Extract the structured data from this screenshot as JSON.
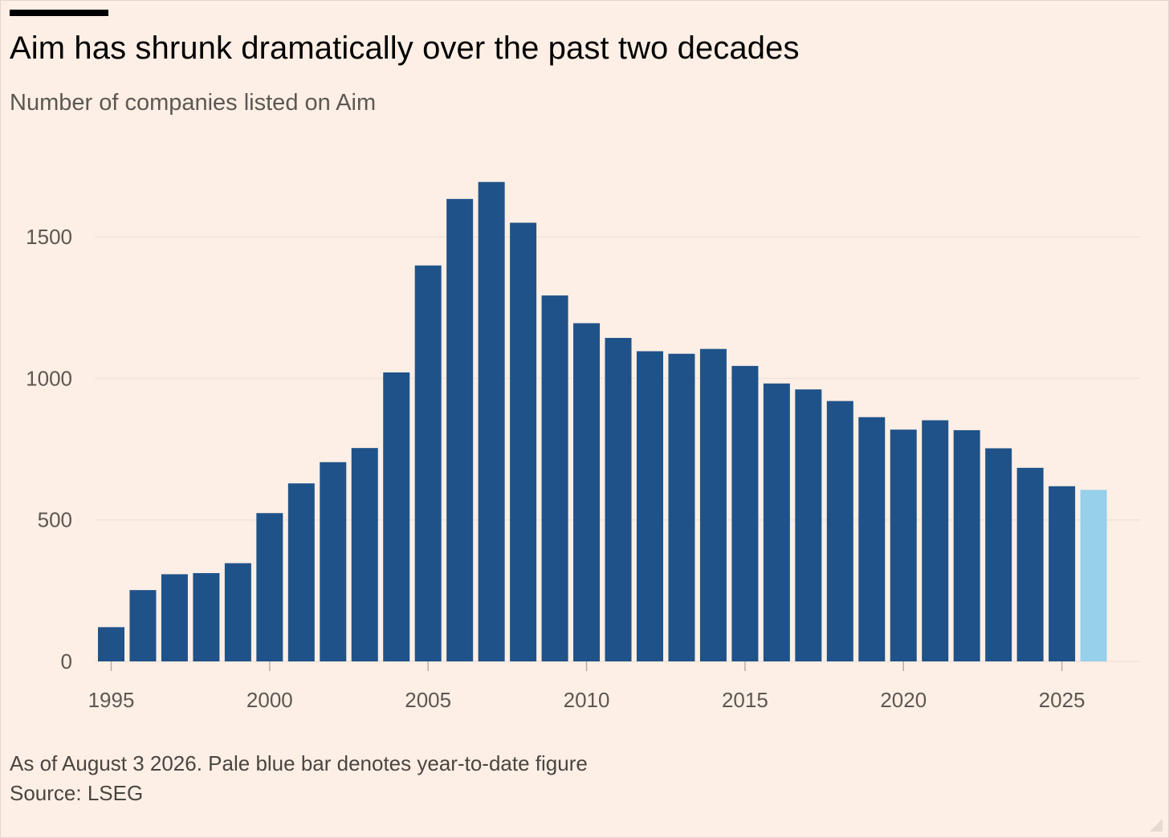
{
  "header": {
    "title": "Aim has shrunk dramatically over the past two decades",
    "subtitle": "Number of companies listed on Aim"
  },
  "footer": {
    "note": "As of August 3 2026. Pale blue bar denotes year-to-date figure",
    "source": "Source: LSEG"
  },
  "colors": {
    "background": "#fdefe5",
    "bar": "#1f5289",
    "bar_ytd": "#96d0ea",
    "gridline": "#efe3da",
    "axis_text": "#5d5752"
  },
  "chart_data": {
    "type": "bar",
    "title": "Aim has shrunk dramatically over the past two decades",
    "subtitle": "Number of companies listed on Aim",
    "xlabel": "",
    "ylabel": "",
    "x": [
      1995,
      1996,
      1997,
      1998,
      1999,
      2000,
      2001,
      2002,
      2003,
      2004,
      2005,
      2006,
      2007,
      2008,
      2009,
      2010,
      2011,
      2012,
      2013,
      2014,
      2015,
      2016,
      2017,
      2018,
      2019,
      2020,
      2021,
      2022,
      2023,
      2024,
      2025,
      2026
    ],
    "values": [
      121,
      252,
      308,
      312,
      347,
      524,
      629,
      704,
      754,
      1021,
      1399,
      1634,
      1694,
      1550,
      1293,
      1195,
      1143,
      1096,
      1087,
      1104,
      1044,
      982,
      961,
      920,
      863,
      819,
      852,
      817,
      753,
      684,
      619,
      606
    ],
    "highlight": [
      {
        "x": 2026,
        "label": "year-to-date",
        "color": "#96d0ea"
      }
    ],
    "xticks": [
      "1995",
      "2000",
      "2005",
      "2010",
      "2015",
      "2020",
      "2025"
    ],
    "yticks": [
      "0",
      "500",
      "1000",
      "1500"
    ],
    "xlim": [
      1994.5,
      2026.5
    ],
    "ylim": [
      0,
      1700
    ],
    "grid": "horizontal"
  }
}
